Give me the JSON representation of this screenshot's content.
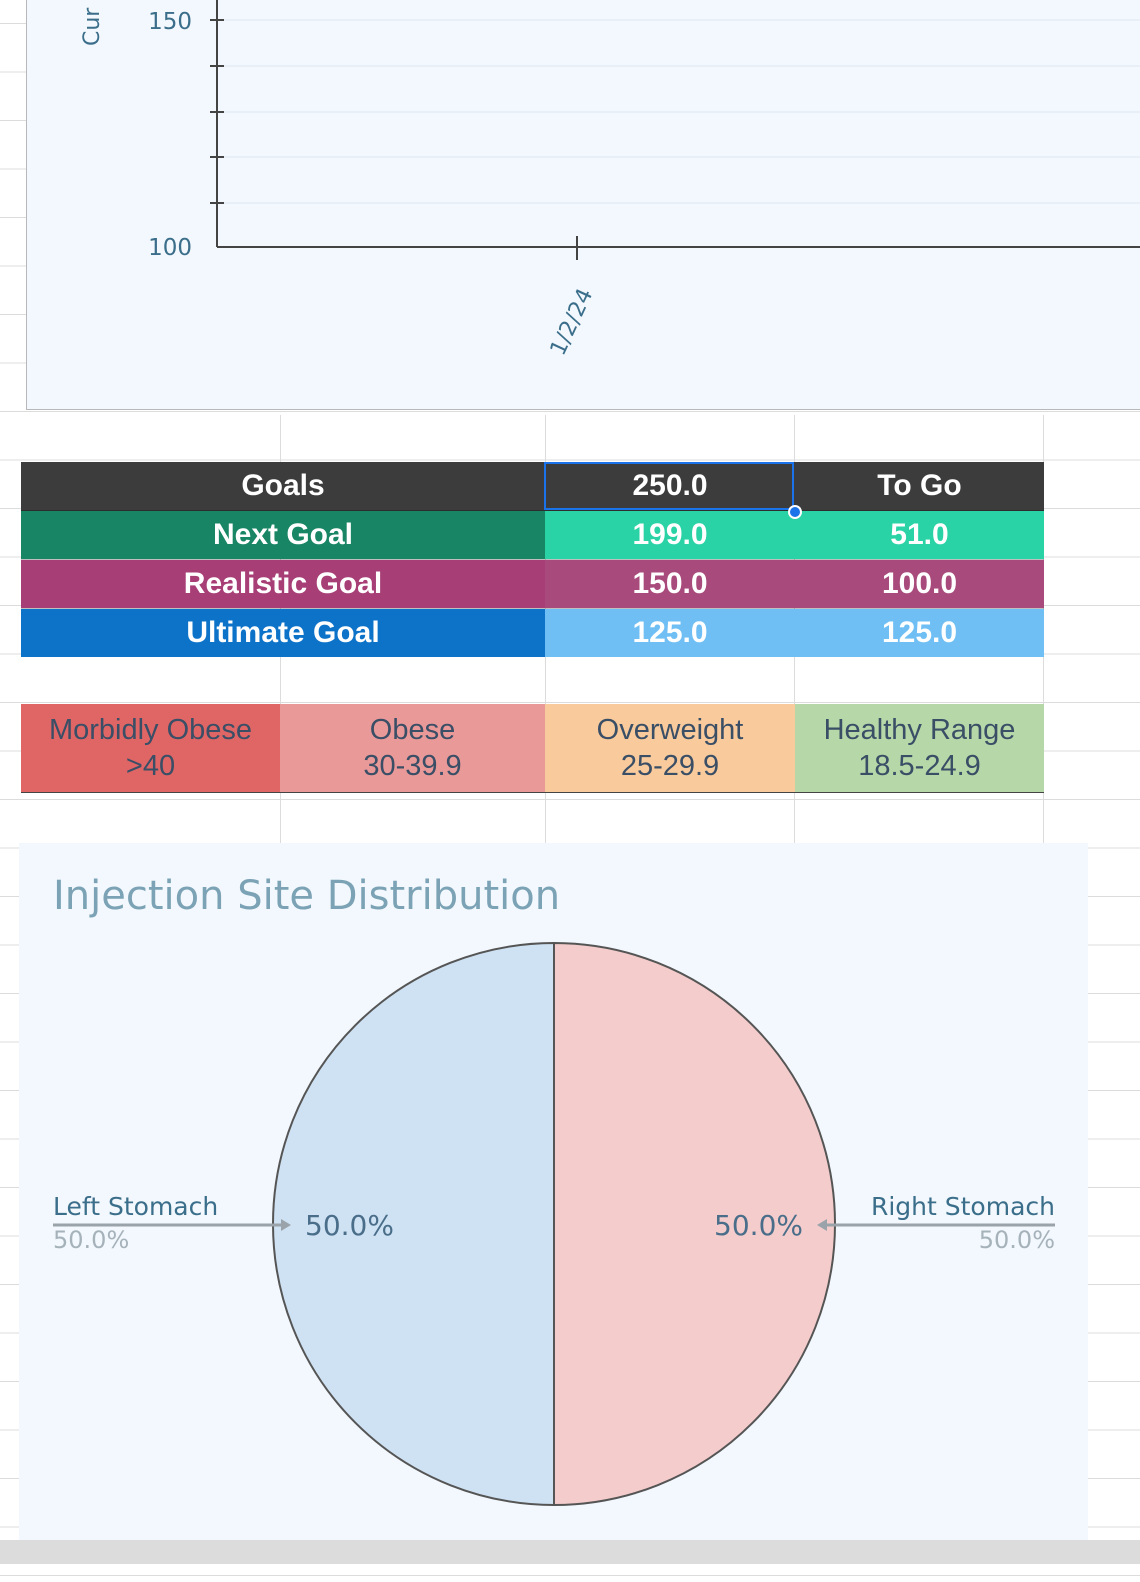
{
  "line_chart": {
    "type": "line",
    "ylabel_partial": "Cur",
    "y_ticks": [
      "150",
      "100"
    ],
    "ylim_visible": [
      100,
      150
    ],
    "x_ticks": [
      "1/2/24"
    ],
    "colors": {
      "background": "#f2f8fd",
      "axis": "#444444",
      "text": "#3b6e8a"
    }
  },
  "goals": {
    "header": {
      "label": "Goals",
      "value": "250.0",
      "togo": "To Go"
    },
    "rows": [
      {
        "label": "Next Goal",
        "value": "199.0",
        "togo": "51.0",
        "label_bg": "#188564",
        "value_bg": "#2ad3a6"
      },
      {
        "label": "Realistic Goal",
        "value": "150.0",
        "togo": "100.0",
        "label_bg": "#a73e76",
        "value_bg": "#a84a7b"
      },
      {
        "label": "Ultimate Goal",
        "value": "125.0",
        "togo": "125.0",
        "label_bg": "#0d73c9",
        "value_bg": "#70bff4"
      }
    ]
  },
  "bmi": [
    {
      "label": "Morbidly Obese",
      "range": ">40",
      "bg": "#e06666"
    },
    {
      "label": "Obese",
      "range": "30-39.9",
      "bg": "#ea9999"
    },
    {
      "label": "Overweight",
      "range": "25-29.9",
      "bg": "#f9cb9c"
    },
    {
      "label": "Healthy Range",
      "range": "18.5-24.9",
      "bg": "#b6d7a8"
    }
  ],
  "chart_data": {
    "type": "pie",
    "title": "Injection Site Distribution",
    "categories": [
      "Left Stomach",
      "Right Stomach"
    ],
    "values": [
      50.0,
      50.0
    ],
    "slice_labels": [
      "50.0%",
      "50.0%"
    ],
    "legend_values": [
      "50.0%",
      "50.0%"
    ],
    "colors": [
      "#cfe2f3",
      "#f4cccc"
    ]
  }
}
